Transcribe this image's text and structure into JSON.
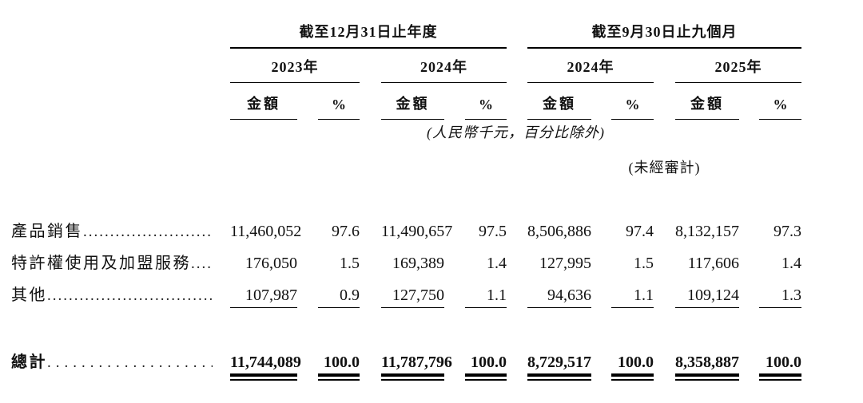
{
  "table": {
    "group1_title": "截至12月31日止年度",
    "group2_title": "截至9月30日止九個月",
    "years": [
      "2023年",
      "2024年",
      "2024年",
      "2025年"
    ],
    "amount_header": "金額",
    "percent_header": "%",
    "note_units": "(人民幣千元，百分比除外)",
    "note_unaudited": "(未經審計)",
    "rows": [
      {
        "label": "產品銷售",
        "values": [
          "11,460,052",
          "97.6",
          "11,490,657",
          "97.5",
          "8,506,886",
          "97.4",
          "8,132,157",
          "97.3"
        ]
      },
      {
        "label": "特許權使用及加盟服務",
        "values": [
          "176,050",
          "1.5",
          "169,389",
          "1.4",
          "127,995",
          "1.5",
          "117,606",
          "1.4"
        ]
      },
      {
        "label": "其他",
        "values": [
          "107,987",
          "0.9",
          "127,750",
          "1.1",
          "94,636",
          "1.1",
          "109,124",
          "1.3"
        ]
      }
    ],
    "total": {
      "label": "總計",
      "values": [
        "11,744,089",
        "100.0",
        "11,787,796",
        "100.0",
        "8,729,517",
        "100.0",
        "8,358,887",
        "100.0"
      ]
    }
  }
}
